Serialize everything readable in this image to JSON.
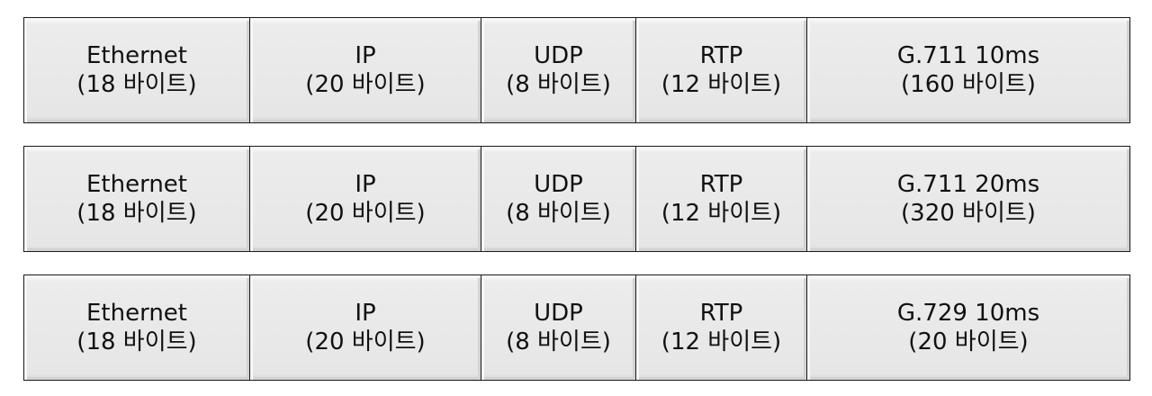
{
  "rows": [
    {
      "cells": [
        {
          "name": "Ethernet",
          "size": "(18 바이트)"
        },
        {
          "name": "IP",
          "size": "(20 바이트)"
        },
        {
          "name": "UDP",
          "size": "(8 바이트)"
        },
        {
          "name": "RTP",
          "size": "(12 바이트)"
        },
        {
          "name": "G.711 10ms",
          "size": "(160 바이트)"
        }
      ]
    },
    {
      "cells": [
        {
          "name": "Ethernet",
          "size": "(18 바이트)"
        },
        {
          "name": "IP",
          "size": "(20 바이트)"
        },
        {
          "name": "UDP",
          "size": "(8 바이트)"
        },
        {
          "name": "RTP",
          "size": "(12 바이트)"
        },
        {
          "name": "G.711 20ms",
          "size": "(320 바이트)"
        }
      ]
    },
    {
      "cells": [
        {
          "name": "Ethernet",
          "size": "(18 바이트)"
        },
        {
          "name": "IP",
          "size": "(20 바이트)"
        },
        {
          "name": "UDP",
          "size": "(8 바이트)"
        },
        {
          "name": "RTP",
          "size": "(12 바이트)"
        },
        {
          "name": "G.729 10ms",
          "size": "(20 바이트)"
        }
      ]
    }
  ]
}
